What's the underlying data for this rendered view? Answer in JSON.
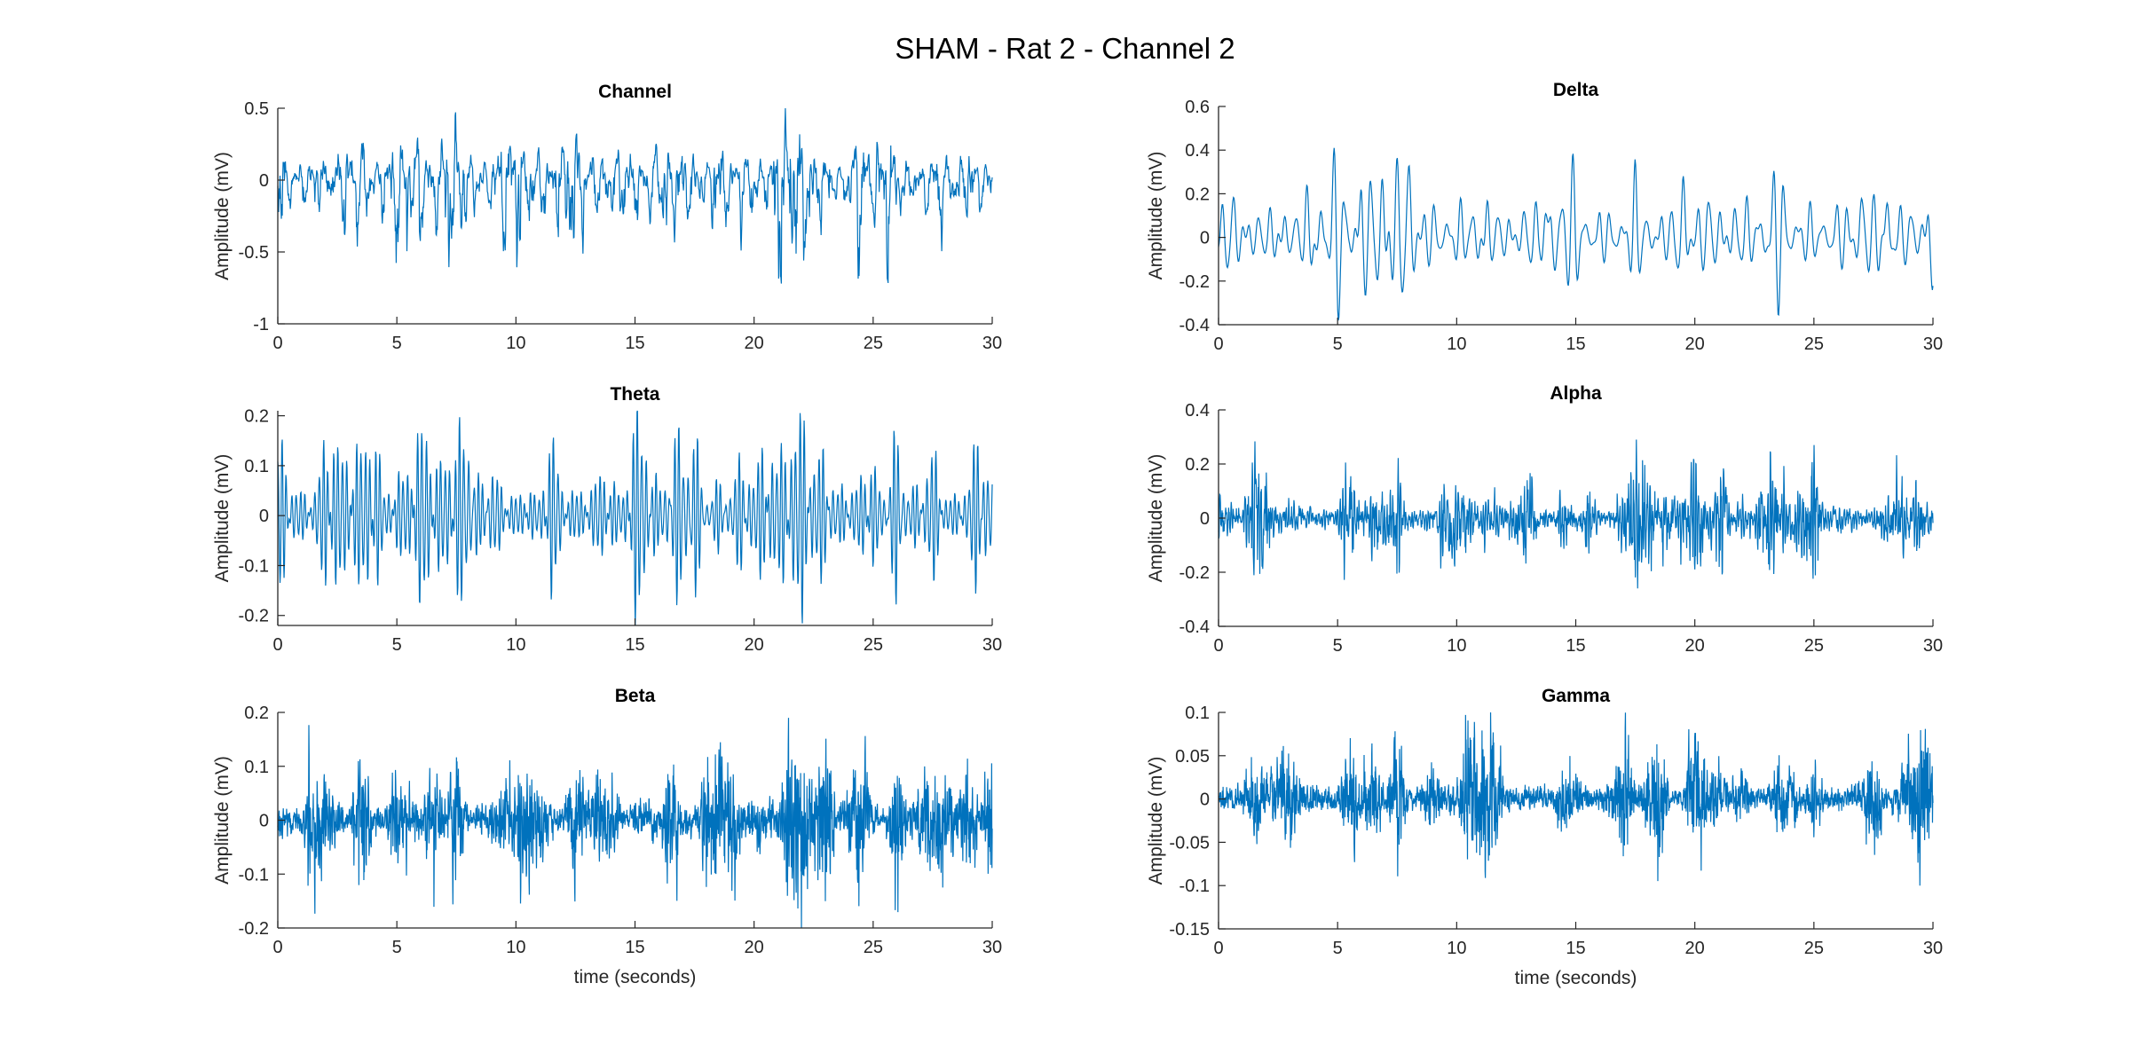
{
  "figure_title": "SHAM - Rat 2 - Channel 2",
  "colors": {
    "trace": "#0072BD",
    "axis": "#262626"
  },
  "chart_data": [
    {
      "type": "line",
      "title": "Channel",
      "xlabel": "",
      "ylabel": "Amplitude (mV)",
      "xlim": [
        0,
        30
      ],
      "ylim": [
        -1,
        0.5
      ],
      "xticks": [
        0,
        5,
        10,
        15,
        20,
        25,
        30
      ],
      "xtick_labels": [
        "0",
        "5",
        "10",
        "15",
        "20",
        "25",
        "30"
      ],
      "yticks": [
        -1,
        -0.5,
        0,
        0.5
      ],
      "ytick_labels": [
        "-1",
        "-0.5",
        "0",
        "0.5"
      ],
      "grid": false,
      "series": [
        {
          "x_start": 0,
          "x_end": 30,
          "signal": "broadband EEG",
          "peak_max": 0.5,
          "trough_min": -0.72,
          "typical_range": [
            -0.4,
            0.35
          ]
        }
      ]
    },
    {
      "type": "line",
      "title": "Delta",
      "xlabel": "",
      "ylabel": "Amplitude (mV)",
      "xlim": [
        0,
        30
      ],
      "ylim": [
        -0.4,
        0.6
      ],
      "xticks": [
        0,
        5,
        10,
        15,
        20,
        25,
        30
      ],
      "xtick_labels": [
        "0",
        "5",
        "10",
        "15",
        "20",
        "25",
        "30"
      ],
      "yticks": [
        -0.4,
        -0.2,
        0,
        0.2,
        0.4,
        0.6
      ],
      "ytick_labels": [
        "-0.4",
        "-0.2",
        "0",
        "0.2",
        "0.4",
        "0.6"
      ],
      "grid": false,
      "series": [
        {
          "x_start": 0,
          "x_end": 30,
          "signal": "delta band",
          "peak_max": 0.41,
          "trough_min": -0.38,
          "typical_range": [
            -0.25,
            0.3
          ]
        }
      ]
    },
    {
      "type": "line",
      "title": "Theta",
      "xlabel": "",
      "ylabel": "Amplitude (mV)",
      "xlim": [
        0,
        30
      ],
      "ylim": [
        -0.22,
        0.21
      ],
      "xticks": [
        0,
        5,
        10,
        15,
        20,
        25,
        30
      ],
      "xtick_labels": [
        "0",
        "5",
        "10",
        "15",
        "20",
        "25",
        "30"
      ],
      "yticks": [
        -0.2,
        -0.1,
        0,
        0.1,
        0.2
      ],
      "ytick_labels": [
        "-0.2",
        "-0.1",
        "0",
        "0.1",
        "0.2"
      ],
      "grid": false,
      "series": [
        {
          "x_start": 0,
          "x_end": 30,
          "signal": "theta band",
          "peak_max": 0.21,
          "trough_min": -0.22,
          "typical_range": [
            -0.12,
            0.12
          ]
        }
      ]
    },
    {
      "type": "line",
      "title": "Alpha",
      "xlabel": "",
      "ylabel": "Amplitude (mV)",
      "xlim": [
        0,
        30
      ],
      "ylim": [
        -0.4,
        0.4
      ],
      "xticks": [
        0,
        5,
        10,
        15,
        20,
        25,
        30
      ],
      "xtick_labels": [
        "0",
        "5",
        "10",
        "15",
        "20",
        "25",
        "30"
      ],
      "yticks": [
        -0.4,
        -0.2,
        0,
        0.2,
        0.4
      ],
      "ytick_labels": [
        "-0.4",
        "-0.2",
        "0",
        "0.2",
        "0.4"
      ],
      "grid": false,
      "series": [
        {
          "x_start": 0,
          "x_end": 30,
          "signal": "alpha band",
          "peak_max": 0.29,
          "trough_min": -0.26,
          "typical_range": [
            -0.1,
            0.1
          ]
        }
      ]
    },
    {
      "type": "line",
      "title": "Beta",
      "xlabel": "time (seconds)",
      "ylabel": "Amplitude (mV)",
      "xlim": [
        0,
        30
      ],
      "ylim": [
        -0.2,
        0.2
      ],
      "xticks": [
        0,
        5,
        10,
        15,
        20,
        25,
        30
      ],
      "xtick_labels": [
        "0",
        "5",
        "10",
        "15",
        "20",
        "25",
        "30"
      ],
      "yticks": [
        -0.2,
        -0.1,
        0,
        0.1,
        0.2
      ],
      "ytick_labels": [
        "-0.2",
        "-0.1",
        "0",
        "0.1",
        "0.2"
      ],
      "grid": false,
      "series": [
        {
          "x_start": 0,
          "x_end": 30,
          "signal": "beta band",
          "peak_max": 0.19,
          "trough_min": -0.2,
          "typical_range": [
            -0.05,
            0.05
          ]
        }
      ]
    },
    {
      "type": "line",
      "title": "Gamma",
      "xlabel": "time (seconds)",
      "ylabel": "Amplitude (mV)",
      "xlim": [
        0,
        30
      ],
      "ylim": [
        -0.15,
        0.1
      ],
      "xticks": [
        0,
        5,
        10,
        15,
        20,
        25,
        30
      ],
      "xtick_labels": [
        "0",
        "5",
        "10",
        "15",
        "20",
        "25",
        "30"
      ],
      "yticks": [
        -0.15,
        -0.1,
        -0.05,
        0,
        0.05,
        0.1
      ],
      "ytick_labels": [
        "-0.15",
        "-0.1",
        "-0.05",
        "0",
        "0.05",
        "0.1"
      ],
      "grid": false,
      "series": [
        {
          "x_start": 0,
          "x_end": 30,
          "signal": "gamma band",
          "peak_max": 0.1,
          "trough_min": -0.1,
          "typical_range": [
            -0.03,
            0.03
          ]
        }
      ]
    }
  ]
}
